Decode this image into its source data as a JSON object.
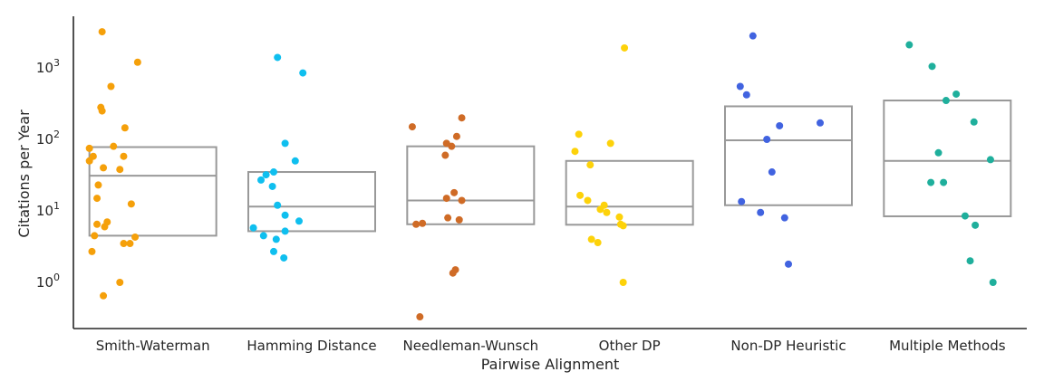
{
  "chart_data": {
    "type": "scatter",
    "subtype": "box-strip",
    "title": "",
    "xlabel": "Pairwise Alignment",
    "ylabel": "Citations per Year",
    "yscale": "log",
    "ylim": [
      0.2,
      5000
    ],
    "yticks": [
      {
        "value": 1,
        "base": "10",
        "exp": "0"
      },
      {
        "value": 10,
        "base": "10",
        "exp": "1"
      },
      {
        "value": 100,
        "base": "10",
        "exp": "2"
      },
      {
        "value": 1000,
        "base": "10",
        "exp": "3"
      }
    ],
    "grid": false,
    "legend": "none",
    "categories": [
      "Smith-Waterman",
      "Hamming Distance",
      "Needleman-Wunsch",
      "Other DP",
      "Non-DP Heuristic",
      "Multiple Methods"
    ],
    "series": [
      {
        "category": "Smith-Waterman",
        "color": "#f5a00a",
        "box": {
          "q1": 4.5,
          "median": 31,
          "q3": 78
        },
        "points": [
          {
            "jitter": 0.1,
            "y": 3200
          },
          {
            "jitter": 0.38,
            "y": 1200
          },
          {
            "jitter": 0.17,
            "y": 550
          },
          {
            "jitter": 0.09,
            "y": 280
          },
          {
            "jitter": 0.1,
            "y": 250
          },
          {
            "jitter": 0.28,
            "y": 145
          },
          {
            "jitter": 0.0,
            "y": 75
          },
          {
            "jitter": 0.19,
            "y": 80
          },
          {
            "jitter": 0.03,
            "y": 58
          },
          {
            "jitter": 0.27,
            "y": 58
          },
          {
            "jitter": 0.0,
            "y": 50
          },
          {
            "jitter": 0.11,
            "y": 40
          },
          {
            "jitter": 0.24,
            "y": 38
          },
          {
            "jitter": 0.07,
            "y": 23
          },
          {
            "jitter": 0.06,
            "y": 15
          },
          {
            "jitter": 0.33,
            "y": 12.5
          },
          {
            "jitter": 0.14,
            "y": 7
          },
          {
            "jitter": 0.06,
            "y": 6.5
          },
          {
            "jitter": 0.12,
            "y": 6
          },
          {
            "jitter": 0.04,
            "y": 4.5
          },
          {
            "jitter": 0.36,
            "y": 4.3
          },
          {
            "jitter": 0.27,
            "y": 3.5
          },
          {
            "jitter": 0.32,
            "y": 3.5
          },
          {
            "jitter": 0.02,
            "y": 2.7
          },
          {
            "jitter": 0.24,
            "y": 1.0
          },
          {
            "jitter": 0.11,
            "y": 0.65
          }
        ]
      },
      {
        "category": "Hamming Distance",
        "color": "#0fbfef",
        "box": {
          "q1": 5.2,
          "median": 11.5,
          "q3": 35
        },
        "points": [
          {
            "jitter": 0.23,
            "y": 1400
          },
          {
            "jitter": 0.43,
            "y": 850
          },
          {
            "jitter": 0.29,
            "y": 88
          },
          {
            "jitter": 0.37,
            "y": 50
          },
          {
            "jitter": 0.2,
            "y": 35
          },
          {
            "jitter": 0.14,
            "y": 32
          },
          {
            "jitter": 0.1,
            "y": 27
          },
          {
            "jitter": 0.19,
            "y": 22
          },
          {
            "jitter": 0.23,
            "y": 12
          },
          {
            "jitter": 0.29,
            "y": 8.7
          },
          {
            "jitter": 0.4,
            "y": 7.2
          },
          {
            "jitter": 0.04,
            "y": 5.8
          },
          {
            "jitter": 0.29,
            "y": 5.2
          },
          {
            "jitter": 0.12,
            "y": 4.5
          },
          {
            "jitter": 0.22,
            "y": 4.0
          },
          {
            "jitter": 0.2,
            "y": 2.7
          },
          {
            "jitter": 0.28,
            "y": 2.2
          }
        ]
      },
      {
        "category": "Needleman-Wunsch",
        "color": "#cf6b26",
        "box": {
          "q1": 6.5,
          "median": 14,
          "q3": 80
        },
        "points": [
          {
            "jitter": 0.04,
            "y": 150
          },
          {
            "jitter": 0.43,
            "y": 200
          },
          {
            "jitter": 0.39,
            "y": 110
          },
          {
            "jitter": 0.31,
            "y": 88
          },
          {
            "jitter": 0.35,
            "y": 80
          },
          {
            "jitter": 0.3,
            "y": 60
          },
          {
            "jitter": 0.37,
            "y": 18
          },
          {
            "jitter": 0.31,
            "y": 15
          },
          {
            "jitter": 0.43,
            "y": 14
          },
          {
            "jitter": 0.32,
            "y": 8.0
          },
          {
            "jitter": 0.41,
            "y": 7.5
          },
          {
            "jitter": 0.12,
            "y": 6.7
          },
          {
            "jitter": 0.07,
            "y": 6.5
          },
          {
            "jitter": 0.38,
            "y": 1.5
          },
          {
            "jitter": 0.36,
            "y": 1.35
          },
          {
            "jitter": 0.1,
            "y": 0.33
          }
        ]
      },
      {
        "category": "Other DP",
        "color": "#fdd20a",
        "box": {
          "q1": 6.4,
          "median": 11.5,
          "q3": 50
        },
        "points": [
          {
            "jitter": 0.46,
            "y": 1900
          },
          {
            "jitter": 0.1,
            "y": 118
          },
          {
            "jitter": 0.35,
            "y": 88
          },
          {
            "jitter": 0.07,
            "y": 68
          },
          {
            "jitter": 0.19,
            "y": 44
          },
          {
            "jitter": 0.11,
            "y": 16.5
          },
          {
            "jitter": 0.17,
            "y": 14
          },
          {
            "jitter": 0.3,
            "y": 12
          },
          {
            "jitter": 0.27,
            "y": 10.5
          },
          {
            "jitter": 0.32,
            "y": 9.5
          },
          {
            "jitter": 0.42,
            "y": 8.2
          },
          {
            "jitter": 0.43,
            "y": 6.5
          },
          {
            "jitter": 0.45,
            "y": 6.2
          },
          {
            "jitter": 0.2,
            "y": 4.0
          },
          {
            "jitter": 0.25,
            "y": 3.6
          },
          {
            "jitter": 0.45,
            "y": 1.0
          }
        ]
      },
      {
        "category": "Non-DP Heuristic",
        "color": "#4163e0",
        "box": {
          "q1": 12,
          "median": 97,
          "q3": 290
        },
        "points": [
          {
            "jitter": 0.22,
            "y": 2800
          },
          {
            "jitter": 0.12,
            "y": 550
          },
          {
            "jitter": 0.17,
            "y": 420
          },
          {
            "jitter": 0.75,
            "y": 170
          },
          {
            "jitter": 0.43,
            "y": 155
          },
          {
            "jitter": 0.33,
            "y": 100
          },
          {
            "jitter": 0.37,
            "y": 35
          },
          {
            "jitter": 0.13,
            "y": 13.5
          },
          {
            "jitter": 0.28,
            "y": 9.5
          },
          {
            "jitter": 0.47,
            "y": 8.0
          },
          {
            "jitter": 0.5,
            "y": 1.8
          }
        ]
      },
      {
        "category": "Multiple Methods",
        "color": "#1faf9c",
        "box": {
          "q1": 8.4,
          "median": 50,
          "q3": 350
        },
        "points": [
          {
            "jitter": 0.2,
            "y": 2100
          },
          {
            "jitter": 0.38,
            "y": 1050
          },
          {
            "jitter": 0.57,
            "y": 430
          },
          {
            "jitter": 0.49,
            "y": 350
          },
          {
            "jitter": 0.71,
            "y": 175
          },
          {
            "jitter": 0.43,
            "y": 65
          },
          {
            "jitter": 0.84,
            "y": 52
          },
          {
            "jitter": 0.37,
            "y": 25
          },
          {
            "jitter": 0.47,
            "y": 25
          },
          {
            "jitter": 0.64,
            "y": 8.5
          },
          {
            "jitter": 0.72,
            "y": 6.3
          },
          {
            "jitter": 0.68,
            "y": 2.0
          },
          {
            "jitter": 0.86,
            "y": 1.0
          }
        ]
      }
    ]
  }
}
